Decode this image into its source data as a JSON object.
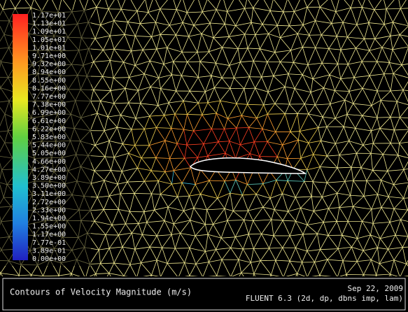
{
  "colorbar": {
    "labels": [
      "1.17e+01",
      "1.13e+01",
      "1.09e+01",
      "1.05e+01",
      "1.01e+01",
      "9.71e+00",
      "9.32e+00",
      "8.94e+00",
      "8.55e+00",
      "8.16e+00",
      "7.77e+00",
      "7.38e+00",
      "6.99e+00",
      "6.61e+00",
      "6.22e+00",
      "5.83e+00",
      "5.44e+00",
      "5.05e+00",
      "4.66e+00",
      "4.27e+00",
      "3.89e+00",
      "3.50e+00",
      "3.11e+00",
      "2.72e+00",
      "2.33e+00",
      "1.94e+00",
      "1.55e+00",
      "1.17e+00",
      "7.77e-01",
      "3.89e-01",
      "0.00e+00"
    ]
  },
  "footer": {
    "title": "Contours of Velocity Magnitude (m/s)",
    "date": "Sep 22, 2009",
    "solver": "FLUENT 6.3 (2d, dp, dbns imp, lam)"
  }
}
